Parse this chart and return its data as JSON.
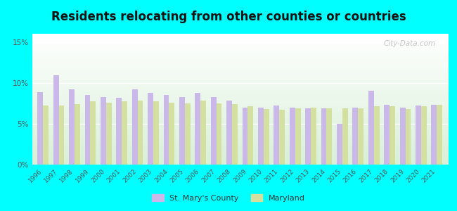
{
  "years": [
    1996,
    1997,
    1998,
    1999,
    2000,
    2001,
    2002,
    2003,
    2004,
    2005,
    2006,
    2007,
    2008,
    2009,
    2010,
    2011,
    2012,
    2013,
    2014,
    2015,
    2016,
    2017,
    2018,
    2019,
    2020,
    2021
  ],
  "st_mary": [
    8.9,
    10.9,
    9.2,
    8.5,
    8.3,
    8.2,
    9.2,
    8.8,
    8.5,
    8.3,
    8.8,
    8.3,
    7.8,
    7.0,
    7.0,
    7.2,
    7.0,
    6.9,
    6.9,
    5.0,
    7.0,
    9.0,
    7.3,
    7.0,
    7.2,
    7.3
  ],
  "maryland": [
    7.2,
    7.2,
    7.4,
    7.7,
    7.6,
    7.7,
    7.8,
    7.7,
    7.6,
    7.5,
    7.8,
    7.5,
    7.4,
    7.1,
    6.8,
    6.7,
    6.9,
    7.0,
    6.9,
    6.9,
    6.9,
    7.1,
    7.1,
    6.8,
    7.1,
    7.3
  ],
  "stmary_color": "#c9b8e8",
  "maryland_color": "#d4e0a0",
  "title": "Residents relocating from other counties or countries",
  "title_fontsize": 12,
  "background_color": "#00ffff",
  "ylim": [
    0,
    16
  ],
  "yticks": [
    0,
    5,
    10,
    15
  ],
  "ytick_labels": [
    "0%",
    "5%",
    "10%",
    "15%"
  ],
  "bar_width": 0.35,
  "watermark": "City-Data.com",
  "legend_stmary": "St. Mary's County",
  "legend_maryland": "Maryland"
}
